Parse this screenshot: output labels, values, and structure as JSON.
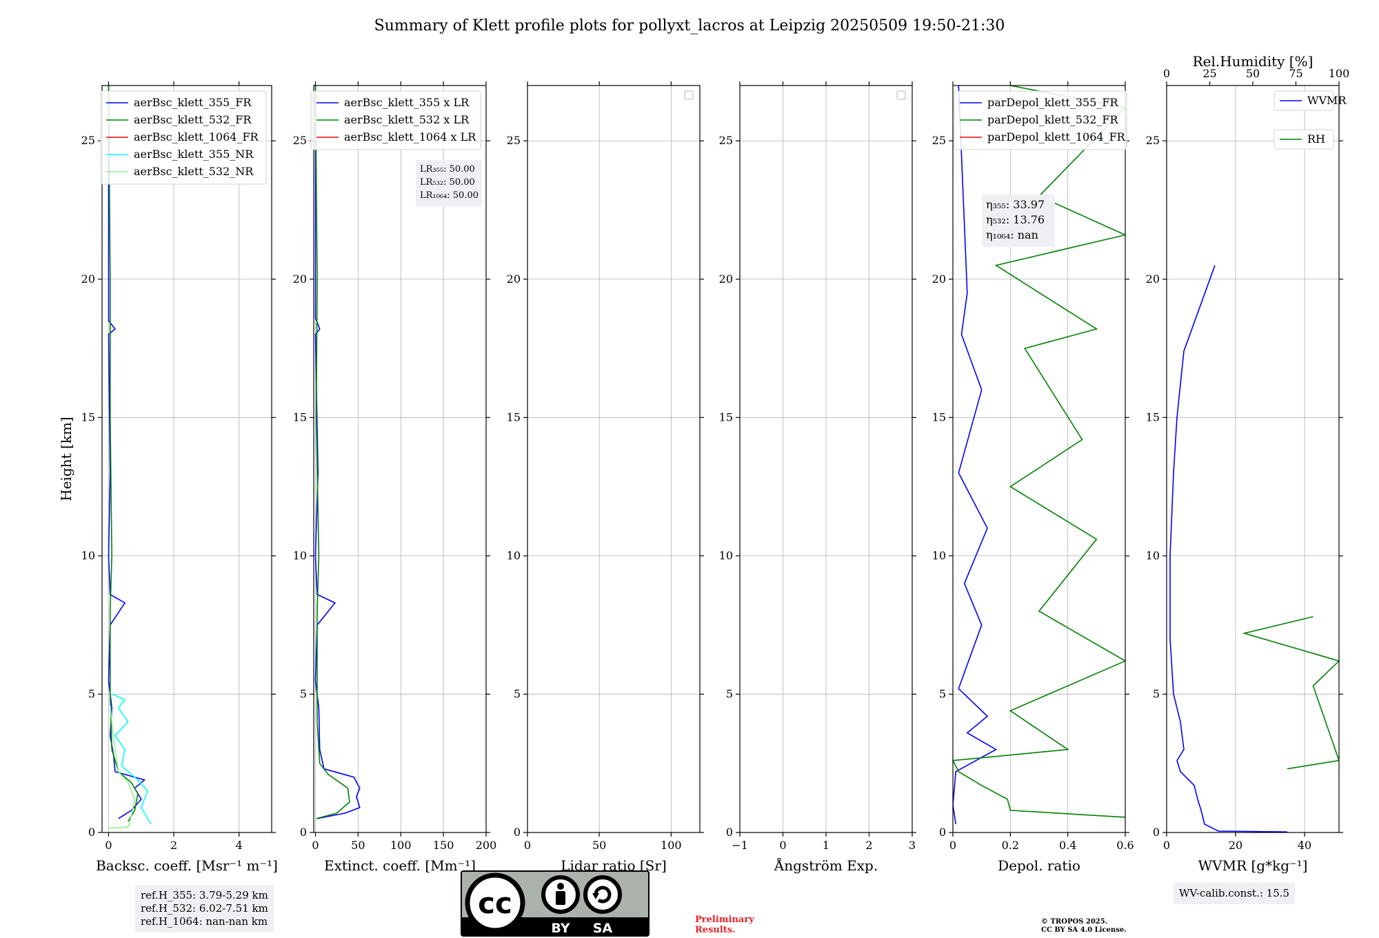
{
  "title": "Summary of Klett profile plots for pollyxt_lacros at Leipzig 20250509 19:50-21:30",
  "y_axis": {
    "label": "Height [km]",
    "ticks": [
      "0",
      "5",
      "10",
      "15",
      "20",
      "25"
    ]
  },
  "ref_heights": [
    "ref.H_355: 3.79-5.29 km",
    "ref.H_532: 6.02-7.51 km",
    "ref.H_1064: nan-nan km"
  ],
  "wv_calib": "WV-calib.const.: 15.5",
  "preliminary": [
    "Preliminary",
    "Results."
  ],
  "copyright": [
    "© TROPOS 2025.",
    "CC BY SA 4.0 License."
  ],
  "license_badge": {
    "cc": "cc",
    "by": "BY",
    "sa": "SA"
  },
  "colors": {
    "blue": "#0000ff",
    "green": "#008000",
    "red": "#ff0000",
    "cyan": "#00ffff",
    "lightgreen": "#90ee90",
    "grid": "#b0b0b0",
    "box": "#eef0f3",
    "note": "#e8232a"
  },
  "chart_data": [
    {
      "type": "line",
      "xlabel": "Backsc. coeff. [Msr⁻¹ m⁻¹]",
      "xlim": [
        -0.2,
        5
      ],
      "ylim": [
        0,
        27
      ],
      "xticks": [
        0,
        2,
        4
      ],
      "legend": "top-right",
      "series": [
        {
          "name": "aerBsc_klett_355_FR",
          "color": "blue",
          "points": [
            [
              0.3,
              0.5
            ],
            [
              0.7,
              0.8
            ],
            [
              1.0,
              1.2
            ],
            [
              0.8,
              1.6
            ],
            [
              1.1,
              1.9
            ],
            [
              0.2,
              2.2
            ],
            [
              0.15,
              2.8
            ],
            [
              0.05,
              3.5
            ],
            [
              0.1,
              4.5
            ],
            [
              0.0,
              5.5
            ],
            [
              0.05,
              7.5
            ],
            [
              0.5,
              8.3
            ],
            [
              0.05,
              8.6
            ],
            [
              0.0,
              10
            ],
            [
              0.05,
              13
            ],
            [
              0.0,
              18
            ],
            [
              0.2,
              18.2
            ],
            [
              0.0,
              18.5
            ],
            [
              0.0,
              27
            ]
          ]
        },
        {
          "name": "aerBsc_klett_532_FR",
          "color": "green",
          "points": [
            [
              0.6,
              0.4
            ],
            [
              0.8,
              0.8
            ],
            [
              0.9,
              1.4
            ],
            [
              0.7,
              1.8
            ],
            [
              0.3,
              2.2
            ],
            [
              0.1,
              3
            ],
            [
              0.05,
              5
            ],
            [
              0.05,
              8
            ],
            [
              0.1,
              10
            ],
            [
              0.05,
              15
            ],
            [
              0.05,
              20
            ],
            [
              0.0,
              27
            ]
          ]
        },
        {
          "name": "aerBsc_klett_1064_FR",
          "color": "red",
          "points": []
        },
        {
          "name": "aerBsc_klett_355_NR",
          "color": "cyan",
          "points": [
            [
              1.3,
              0.3
            ],
            [
              1.0,
              0.9
            ],
            [
              1.2,
              1.5
            ],
            [
              0.9,
              1.9
            ],
            [
              0.4,
              2.4
            ],
            [
              0.5,
              3
            ],
            [
              0.2,
              3.5
            ],
            [
              0.6,
              4
            ],
            [
              0.3,
              4.5
            ],
            [
              0.5,
              4.8
            ],
            [
              0.1,
              5.0
            ]
          ]
        },
        {
          "name": "aerBsc_klett_532_NR",
          "color": "lightgreen",
          "points": [
            [
              0.0,
              0.15
            ],
            [
              0.6,
              0.2
            ],
            [
              0.7,
              0.6
            ],
            [
              0.8,
              1.2
            ],
            [
              0.6,
              1.8
            ],
            [
              0.3,
              2.2
            ],
            [
              0.2,
              3
            ],
            [
              0.1,
              4
            ],
            [
              0.05,
              4.6
            ]
          ]
        }
      ]
    },
    {
      "type": "line",
      "xlabel": "Extinct. coeff. [Mm⁻¹]",
      "xlim": [
        -2,
        200
      ],
      "ylim": [
        0,
        27
      ],
      "xticks": [
        0,
        50,
        100,
        150,
        200
      ],
      "legend": "top-right",
      "annotation": [
        "LR₃₅₅: 50.00",
        "LR₅₃₂: 50.00",
        "LR₁₀₆₄: 50.00"
      ],
      "series": [
        {
          "name": "aerBsc_klett_355 x LR",
          "color": "blue",
          "points": [
            [
              2,
              0.5
            ],
            [
              35,
              0.7
            ],
            [
              52,
              0.9
            ],
            [
              48,
              1.3
            ],
            [
              52,
              1.6
            ],
            [
              45,
              2.0
            ],
            [
              10,
              2.3
            ],
            [
              5,
              3
            ],
            [
              4,
              4.5
            ],
            [
              0,
              5.5
            ],
            [
              2,
              7.5
            ],
            [
              23,
              8.3
            ],
            [
              2,
              8.6
            ],
            [
              0,
              10
            ],
            [
              3,
              13
            ],
            [
              0,
              18
            ],
            [
              5,
              18.2
            ],
            [
              0,
              18.6
            ],
            [
              0,
              27
            ]
          ]
        },
        {
          "name": "aerBsc_klett_532 x LR",
          "color": "green",
          "points": [
            [
              1,
              0.5
            ],
            [
              25,
              0.7
            ],
            [
              40,
              1.1
            ],
            [
              38,
              1.6
            ],
            [
              15,
              2.1
            ],
            [
              5,
              2.5
            ],
            [
              2,
              4
            ],
            [
              2,
              8
            ],
            [
              4,
              10
            ],
            [
              1,
              15
            ],
            [
              2,
              20
            ],
            [
              0,
              27
            ]
          ]
        },
        {
          "name": "aerBsc_klett_1064 x LR",
          "color": "red",
          "points": []
        }
      ]
    },
    {
      "type": "line",
      "xlabel": "Lidar ratio [Sr]",
      "xlim": [
        0,
        120
      ],
      "ylim": [
        0,
        27
      ],
      "xticks": [
        0,
        50,
        100
      ],
      "legend": "top-right",
      "series": []
    },
    {
      "type": "line",
      "xlabel": "Ångström Exp.",
      "xlim": [
        -1,
        3
      ],
      "ylim": [
        0,
        27
      ],
      "xticks": [
        -1,
        0,
        1,
        2,
        3
      ],
      "legend": "top-right",
      "series": []
    },
    {
      "type": "line",
      "xlabel": "Depol. ratio",
      "xlim": [
        0,
        0.6
      ],
      "ylim": [
        0,
        27
      ],
      "xticks": [
        0.0,
        0.2,
        0.4,
        0.6
      ],
      "legend": "top-left",
      "annotation": [
        "η₃₅₅: 33.97",
        "η₅₃₂: 13.76",
        "η₁₀₆₄: nan"
      ],
      "series": [
        {
          "name": "parDepol_klett_355_FR",
          "color": "blue",
          "points": [
            [
              0.01,
              0.3
            ],
            [
              0.0,
              1.0
            ],
            [
              0.01,
              2.2
            ],
            [
              0.15,
              3.0
            ],
            [
              0.05,
              3.6
            ],
            [
              0.12,
              4.2
            ],
            [
              0.02,
              5.2
            ],
            [
              0.1,
              7.5
            ],
            [
              0.04,
              9
            ],
            [
              0.12,
              11
            ],
            [
              0.02,
              13
            ],
            [
              0.1,
              16
            ],
            [
              0.03,
              18
            ],
            [
              0.05,
              19.5
            ],
            [
              0.02,
              27
            ]
          ]
        },
        {
          "name": "parDepol_klett_532_FR",
          "color": "green",
          "points": [
            [
              0.6,
              0.55
            ],
            [
              0.2,
              0.8
            ],
            [
              0.19,
              1.2
            ],
            [
              0.1,
              1.7
            ],
            [
              0.02,
              2.2
            ],
            [
              0.0,
              2.6
            ],
            [
              0.4,
              3.0
            ],
            [
              0.2,
              4.4
            ],
            [
              0.6,
              6.2
            ],
            [
              0.3,
              8.0
            ],
            [
              0.5,
              10.6
            ],
            [
              0.2,
              12.5
            ],
            [
              0.45,
              14.2
            ],
            [
              0.25,
              17.5
            ],
            [
              0.5,
              18.2
            ],
            [
              0.15,
              20.5
            ],
            [
              0.6,
              21.6
            ],
            [
              0.3,
              23
            ],
            [
              0.6,
              26.2
            ],
            [
              0.2,
              27
            ]
          ]
        },
        {
          "name": "parDepol_klett_1064_FR",
          "color": "red",
          "points": []
        }
      ]
    },
    {
      "type": "line",
      "xlabel": "WVMR [g*kg⁻¹]",
      "x2label": "Rel.Humidity [%]",
      "xlim": [
        0,
        50
      ],
      "x2lim": [
        0,
        100
      ],
      "ylim": [
        0,
        27
      ],
      "xticks": [
        0,
        20,
        40
      ],
      "x2ticks": [
        0,
        25,
        50,
        75,
        100
      ],
      "legend": "top-right",
      "series": [
        {
          "name": "WVMR",
          "color": "blue",
          "points": [
            [
              35,
              0.02
            ],
            [
              15,
              0.05
            ],
            [
              11,
              0.3
            ],
            [
              10,
              0.8
            ],
            [
              9,
              1.2
            ],
            [
              8,
              1.7
            ],
            [
              4,
              2.2
            ],
            [
              3,
              2.6
            ],
            [
              5,
              3.0
            ],
            [
              4,
              4.0
            ],
            [
              2,
              5.0
            ],
            [
              1,
              7.0
            ],
            [
              1,
              10
            ],
            [
              2,
              13
            ],
            [
              3,
              15
            ],
            [
              5,
              17.4
            ],
            [
              14,
              20.5
            ]
          ]
        },
        {
          "name": "RH",
          "color": "green",
          "points": [
            [
              70,
              2.3
            ],
            [
              100,
              2.6
            ],
            [
              85,
              5.3
            ],
            [
              100,
              6.2
            ],
            [
              45,
              7.2
            ],
            [
              85,
              7.8
            ]
          ]
        }
      ]
    }
  ]
}
